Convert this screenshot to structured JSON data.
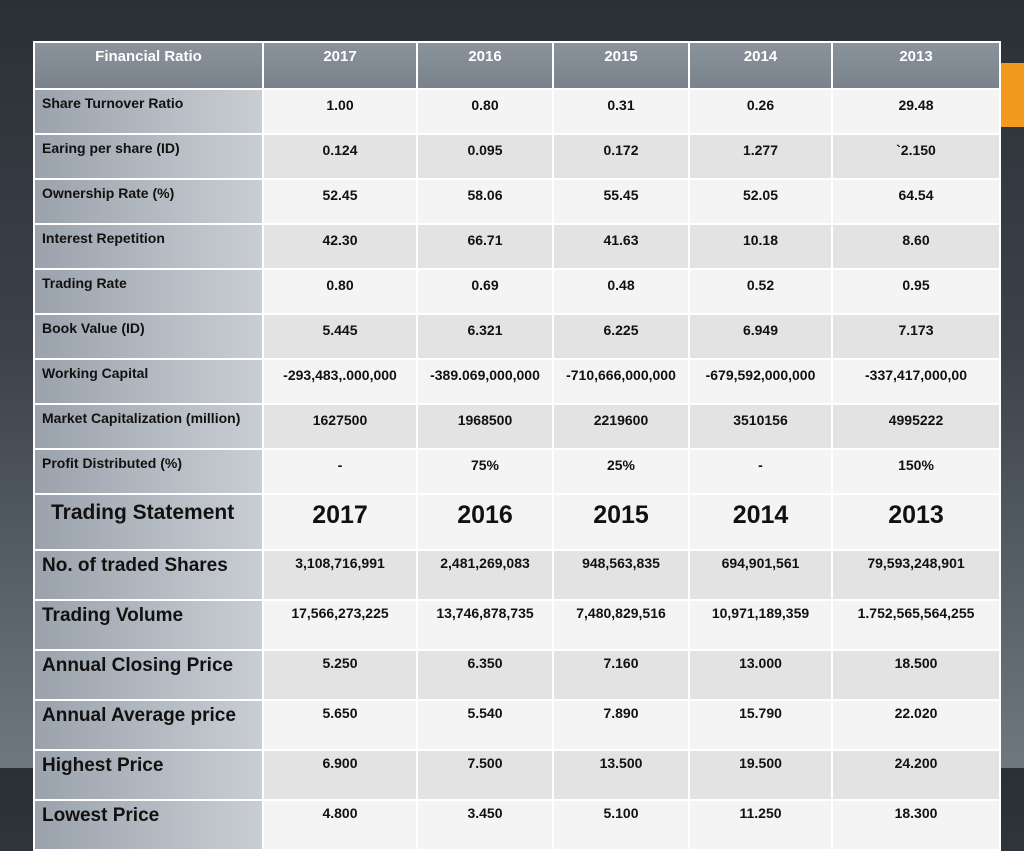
{
  "header": {
    "label": "Financial Ratio",
    "years": [
      "2017",
      "2016",
      "2015",
      "2014",
      "2013"
    ]
  },
  "ratios": [
    {
      "label": "Share Turnover  Ratio",
      "values": [
        "1.00",
        "0.80",
        "0.31",
        "0.26",
        "29.48"
      ]
    },
    {
      "label": "Earing per share (ID)",
      "values": [
        "0.124",
        "0.095",
        "0.172",
        "1.277",
        "`2.150"
      ]
    },
    {
      "label": "Ownership Rate (%)",
      "values": [
        "52.45",
        "58.06",
        "55.45",
        "52.05",
        "64.54"
      ]
    },
    {
      "label": "Interest Repetition",
      "values": [
        "42.30",
        "66.71",
        "41.63",
        "10.18",
        "8.60"
      ]
    },
    {
      "label": "Trading Rate",
      "values": [
        "0.80",
        "0.69",
        "0.48",
        "0.52",
        "0.95"
      ]
    },
    {
      "label": "Book Value (ID)",
      "values": [
        "5.445",
        "6.321",
        "6.225",
        "6.949",
        "7.173"
      ]
    },
    {
      "label": "Working Capital",
      "values": [
        "-293,483,.000,000",
        "-389.069,000,000",
        "-710,666,000,000",
        "-679,592,000,000",
        "-337,417,000,00"
      ]
    },
    {
      "label": "Market Capitalization (million)",
      "values": [
        "1627500",
        "1968500",
        "2219600",
        "3510156",
        "4995222"
      ]
    },
    {
      "label": "Profit Distributed (%)",
      "values": [
        "-",
        "75%",
        "25%",
        "-",
        "150%"
      ]
    }
  ],
  "trading": {
    "label": "Trading Statement",
    "years": [
      "2017",
      "2016",
      "2015",
      "2014",
      "2013"
    ],
    "rows": [
      {
        "label": "No. of traded Shares",
        "values": [
          "3,108,716,991",
          "2,481,269,083",
          "948,563,835",
          "694,901,561",
          "79,593,248,901"
        ]
      },
      {
        "label": "Trading Volume",
        "values": [
          "17,566,273,225",
          "13,746,878,735",
          "7,480,829,516",
          "10,971,189,359",
          "1.752,565,564,255"
        ]
      },
      {
        "label": "Annual Closing Price",
        "values": [
          "5.250",
          "6.350",
          "7.160",
          "13.000",
          "18.500"
        ]
      },
      {
        "label": "Annual Average price",
        "values": [
          "5.650",
          "5.540",
          "7.890",
          "15.790",
          "22.020"
        ]
      },
      {
        "label": "Highest Price",
        "values": [
          "6.900",
          "7.500",
          "13.500",
          "19.500",
          "24.200"
        ]
      },
      {
        "label": "Lowest Price",
        "values": [
          "4.800",
          "3.450",
          "5.100",
          "11.250",
          "18.300"
        ]
      }
    ]
  },
  "colors": {
    "accent": "#f39a1e",
    "header_bg": "#7a828c"
  }
}
